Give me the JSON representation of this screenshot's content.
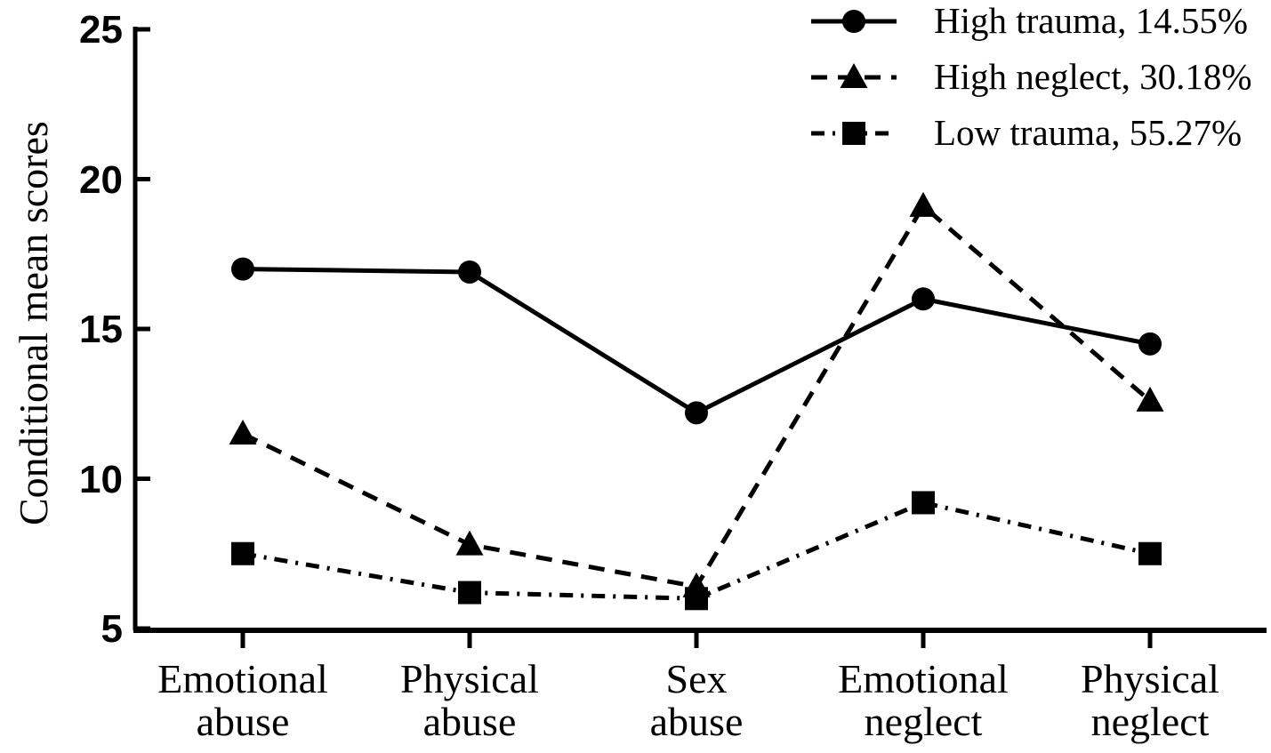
{
  "figure": {
    "kind": "published line chart, black on white"
  },
  "chart_data": {
    "type": "line",
    "title": "",
    "xlabel": "",
    "ylabel": "Conditional mean scores",
    "ylim": [
      5,
      25
    ],
    "yticks": [
      25,
      20,
      15,
      10,
      5
    ],
    "grid": false,
    "legend_position": "top-right",
    "categories": [
      "Emotional abuse",
      "Physical abuse",
      "Sex abuse",
      "Emotional neglect",
      "Physical neglect"
    ],
    "categories_lines": [
      [
        "Emotional",
        "abuse"
      ],
      [
        "Physical",
        "abuse"
      ],
      [
        "Sex",
        "abuse"
      ],
      [
        "Emotional",
        "neglect"
      ],
      [
        "Physical",
        "neglect"
      ]
    ],
    "series": [
      {
        "name": "High trauma, 14.55%",
        "marker": "circle",
        "line_style": "solid",
        "color": "#000000",
        "values": [
          17.0,
          16.9,
          12.2,
          16.0,
          14.5
        ]
      },
      {
        "name": "High neglect, 30.18%",
        "marker": "triangle",
        "line_style": "dashed",
        "color": "#000000",
        "values": [
          11.5,
          7.8,
          6.4,
          19.1,
          12.6
        ]
      },
      {
        "name": "Low trauma, 55.27%",
        "marker": "square",
        "line_style": "dash-dot",
        "color": "#000000",
        "values": [
          7.5,
          6.2,
          6.0,
          9.2,
          7.5
        ]
      }
    ],
    "colors": {
      "ink": "#000000",
      "background": "#ffffff"
    }
  }
}
